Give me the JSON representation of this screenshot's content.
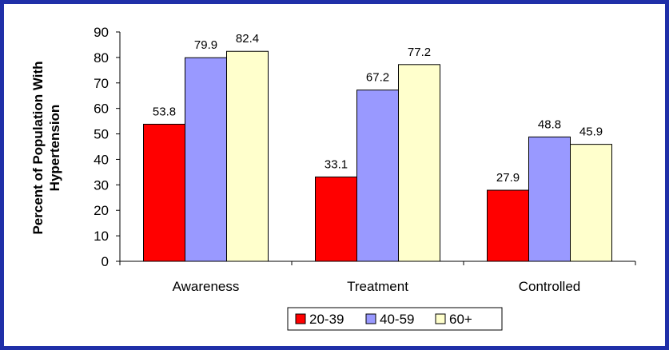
{
  "chart_data": {
    "type": "bar",
    "categories": [
      "Awareness",
      "Treatment",
      "Controlled"
    ],
    "series": [
      {
        "name": "20-39",
        "values": [
          53.8,
          33.1,
          27.9
        ],
        "color": "#ff0000"
      },
      {
        "name": "40-59",
        "values": [
          79.9,
          67.2,
          48.8
        ],
        "color": "#9999ff"
      },
      {
        "name": "60+",
        "values": [
          82.4,
          77.2,
          45.9
        ],
        "color": "#ffffcc"
      }
    ],
    "ylabel": [
      "Percent of Population With",
      "Hypertension"
    ],
    "ylim": [
      0,
      90
    ],
    "yticks": [
      0,
      10,
      20,
      30,
      40,
      50,
      60,
      70,
      80,
      90
    ],
    "grid": false,
    "legend_position": "bottom"
  }
}
